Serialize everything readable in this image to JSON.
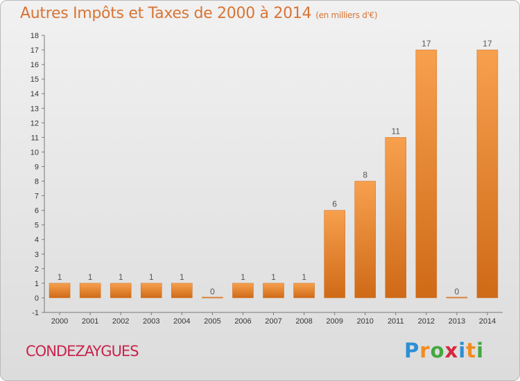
{
  "header": {
    "title": "Autres Impôts et Taxes de 2000 à 2014",
    "subtitle": "(en milliers d'€)"
  },
  "footer": {
    "commune": "CONDEZAYGUES",
    "logo": {
      "letters": [
        "P",
        "r",
        "o",
        "x",
        "i",
        "t",
        "i"
      ],
      "colors": [
        "#2c8fd4",
        "#f28c1e",
        "#43a83f",
        "#d7263d",
        "#2c8fd4",
        "#f28c1e",
        "#43a83f"
      ]
    }
  },
  "colors": {
    "bar_top": "#f7a04e",
    "bar_bottom": "#cf6a17",
    "title": "#d87433",
    "commune": "#c8244c"
  },
  "chart_data": {
    "type": "bar",
    "title": "Autres Impôts et Taxes de 2000 à 2014",
    "subtitle": "(en milliers d'€)",
    "categories": [
      "2000",
      "2001",
      "2002",
      "2003",
      "2004",
      "2005",
      "2006",
      "2007",
      "2008",
      "2009",
      "2010",
      "2011",
      "2012",
      "2013",
      "2014"
    ],
    "values": [
      1,
      1,
      1,
      1,
      1,
      0,
      1,
      1,
      1,
      6,
      8,
      11,
      17,
      0,
      17
    ],
    "data_labels": [
      "1",
      "1",
      "1",
      "1",
      "1",
      "0",
      "1",
      "1",
      "1",
      "6",
      "8",
      "11",
      "17",
      "0",
      "17"
    ],
    "ylim": [
      -1,
      18
    ],
    "yticks": [
      "-1",
      "0",
      "1",
      "2",
      "3",
      "4",
      "5",
      "6",
      "7",
      "8",
      "9",
      "10",
      "11",
      "12",
      "13",
      "14",
      "15",
      "16",
      "17",
      "18"
    ],
    "grid": false,
    "xlabel": "",
    "ylabel": ""
  }
}
